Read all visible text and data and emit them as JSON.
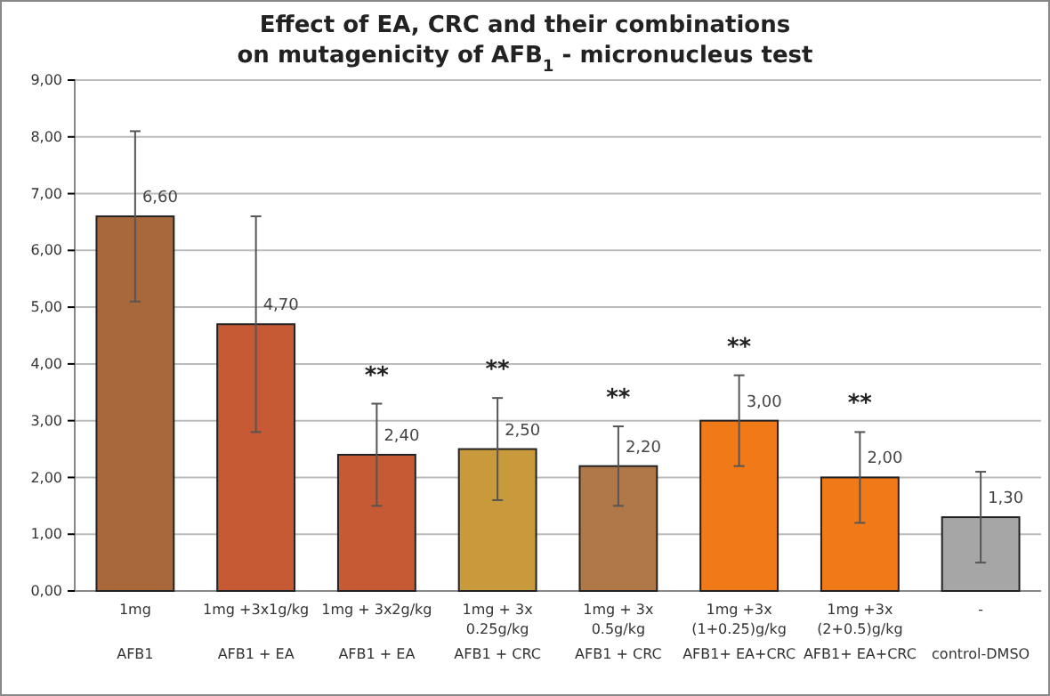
{
  "chart_data": {
    "type": "bar",
    "title": "Effect of EA, CRC and their combinations\non mutagenicity of AFB$_{1}$ - micronucleus test",
    "categories": [
      "1mg\nAFB1",
      "1mg +3x1g/kg\nAFB1 + EA",
      "1mg + 3x2g/kg\nAFB1 + EA",
      "1mg + 3x\n0.25g/kg\nAFB1 + CRC",
      "1mg + 3x\n0.5g/kg\nAFB1 + CRC",
      "1mg +3x\n(1+0.25)g/kg\nAFB1+ EA+CRC",
      "1mg +3x\n(2+0.5)g/kg\nAFB1+ EA+CRC",
      "-\ncontrol-DMSO"
    ],
    "values": [
      6.6,
      4.7,
      2.4,
      2.5,
      2.2,
      3.0,
      2.0,
      1.3
    ],
    "value_labels": [
      "6,60",
      "4,70",
      "2,40",
      "2,50",
      "2,20",
      "3,00",
      "2,00",
      "1,30"
    ],
    "errors": [
      1.5,
      1.9,
      0.9,
      0.9,
      0.7,
      0.8,
      0.8,
      0.8
    ],
    "colors": [
      "#a8683c",
      "#c65a34",
      "#c65a34",
      "#c89a3c",
      "#b07848",
      "#f07a18",
      "#f07a18",
      "#a6a6a6"
    ],
    "ylim": [
      0,
      9
    ],
    "yticks": [
      {
        "value": 0,
        "label": "0,00"
      },
      {
        "value": 1,
        "label": "1,00"
      },
      {
        "value": 2,
        "label": "2,00"
      },
      {
        "value": 3,
        "label": "3,00"
      },
      {
        "value": 4,
        "label": "4,00"
      },
      {
        "value": 5,
        "label": "5,00"
      },
      {
        "value": 6,
        "label": "6,00"
      },
      {
        "value": 7,
        "label": "7,00"
      },
      {
        "value": 8,
        "label": "8,00"
      },
      {
        "value": 9,
        "label": "9,00"
      }
    ],
    "grid": "y",
    "annotations": [
      {
        "text": "**",
        "x": "1mg + 3x2g/kg\nAFB1 + EA",
        "y": 3.3
      },
      {
        "text": "**",
        "x": "1mg + 3x\n0.25g/kg\nAFB1 + CRC",
        "y": 3.4
      },
      {
        "text": "**",
        "x": "1mg + 3x\n0.5g/kg\nAFB1 + CRC",
        "y": 2.9
      },
      {
        "text": "**",
        "x": "1mg +3x\n(1+0.25)g/kg\nAFB1+ EA+CRC",
        "y": 3.8
      },
      {
        "text": "**",
        "x": "1mg +3x\n(2+0.5)g/kg\nAFB1+ EA+CRC",
        "y": 2.8
      }
    ]
  }
}
